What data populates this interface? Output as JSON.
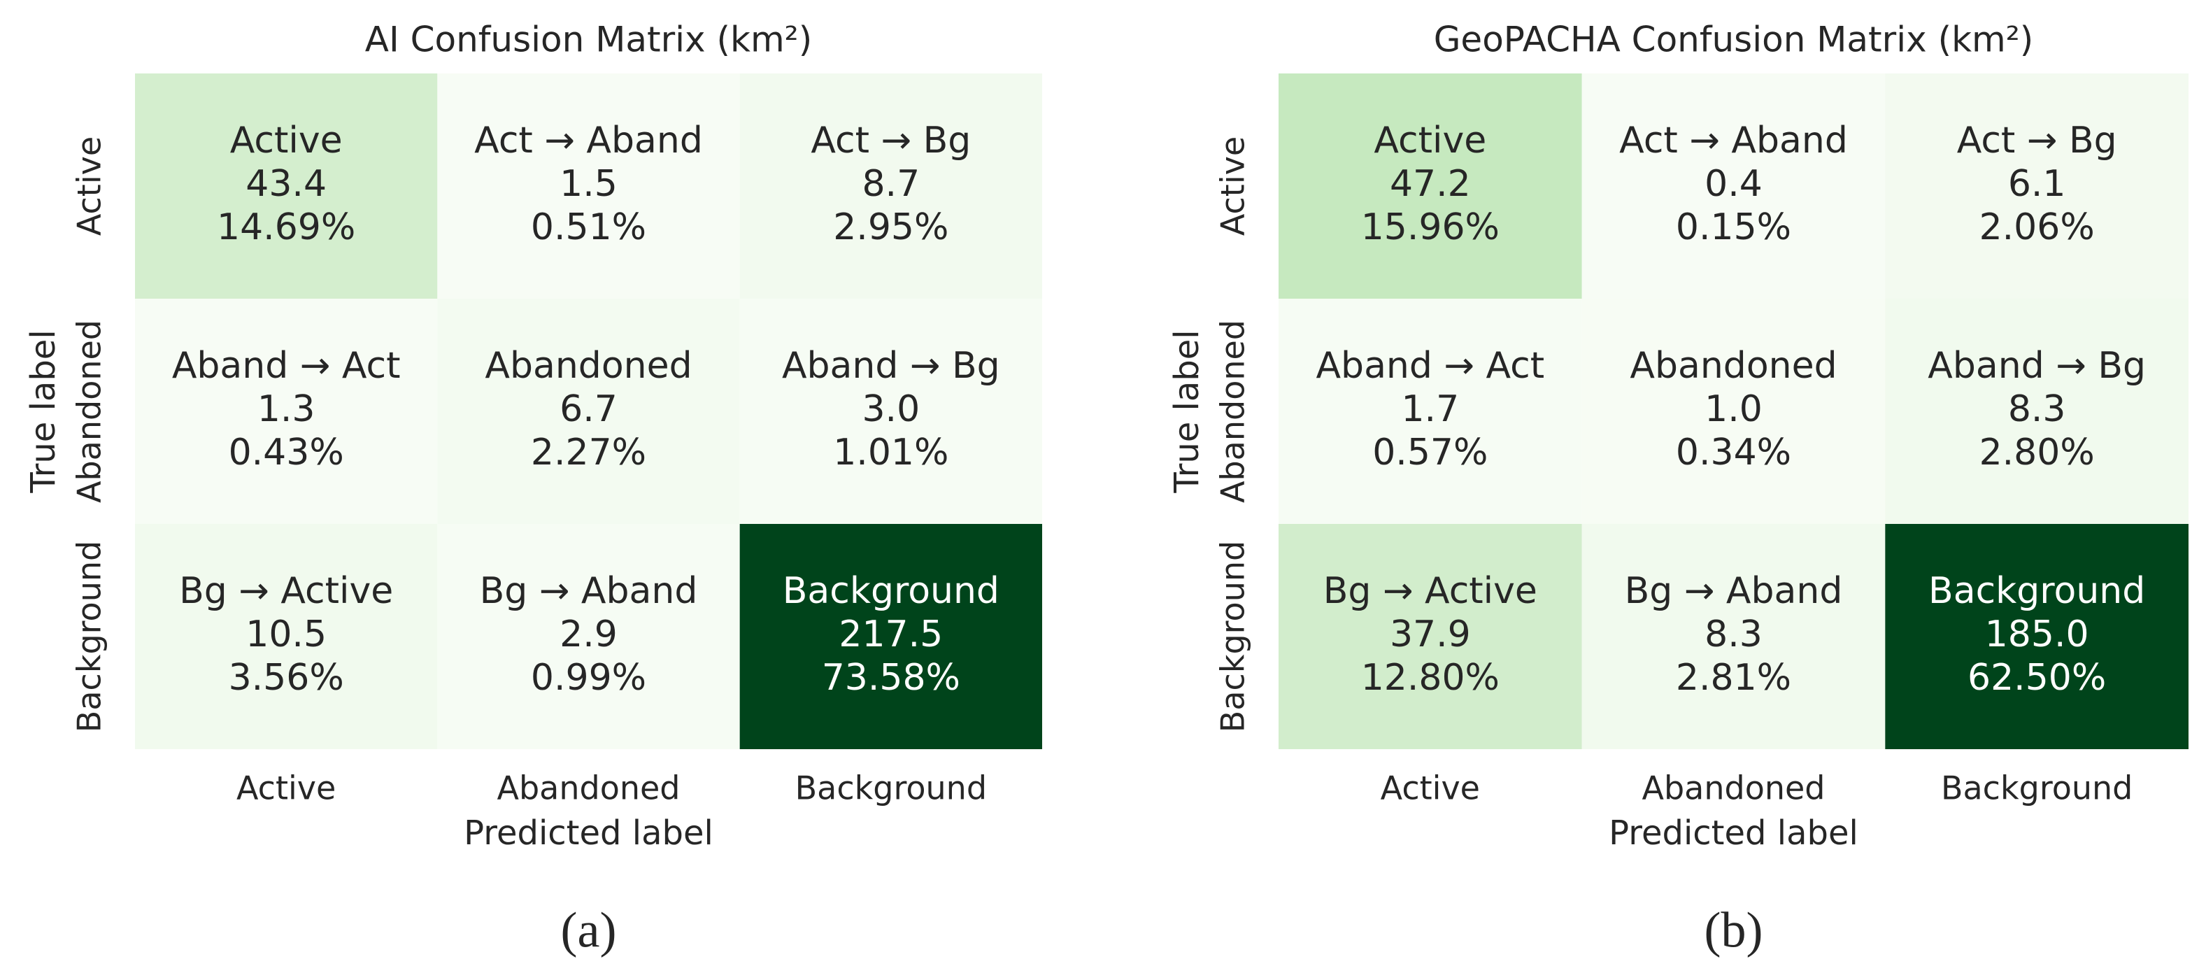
{
  "chart_data": [
    {
      "type": "heatmap",
      "title": "AI Confusion Matrix (km²)",
      "xlabel": "Predicted label",
      "ylabel": "True label",
      "x_categories": [
        "Active",
        "Abandoned",
        "Background"
      ],
      "y_categories": [
        "Active",
        "Abandoned",
        "Background"
      ],
      "cell_labels": [
        [
          "Active",
          "Act → Aband",
          "Act → Bg"
        ],
        [
          "Aband → Act",
          "Abandoned",
          "Aband → Bg"
        ],
        [
          "Bg → Active",
          "Bg → Aband",
          "Background"
        ]
      ],
      "values": [
        [
          43.4,
          1.5,
          8.7
        ],
        [
          1.3,
          6.7,
          3.0
        ],
        [
          10.5,
          2.9,
          217.5
        ]
      ],
      "value_labels": [
        [
          "43.4",
          "1.5",
          "8.7"
        ],
        [
          "1.3",
          "6.7",
          "3.0"
        ],
        [
          "10.5",
          "2.9",
          "217.5"
        ]
      ],
      "percents": [
        [
          14.69,
          0.51,
          2.95
        ],
        [
          0.43,
          2.27,
          1.01
        ],
        [
          3.56,
          0.99,
          73.58
        ]
      ],
      "percent_labels": [
        [
          "14.69%",
          "0.51%",
          "2.95%"
        ],
        [
          "0.43%",
          "2.27%",
          "1.01%"
        ],
        [
          "3.56%",
          "0.99%",
          "73.58%"
        ]
      ],
      "colormap": "Greens",
      "caption": "(a)"
    },
    {
      "type": "heatmap",
      "title": "GeoPACHA Confusion Matrix (km²)",
      "xlabel": "Predicted label",
      "ylabel": "True label",
      "x_categories": [
        "Active",
        "Abandoned",
        "Background"
      ],
      "y_categories": [
        "Active",
        "Abandoned",
        "Background"
      ],
      "cell_labels": [
        [
          "Active",
          "Act → Aband",
          "Act → Bg"
        ],
        [
          "Aband → Act",
          "Abandoned",
          "Aband → Bg"
        ],
        [
          "Bg → Active",
          "Bg → Aband",
          "Background"
        ]
      ],
      "values": [
        [
          47.2,
          0.4,
          6.1
        ],
        [
          1.7,
          1.0,
          8.3
        ],
        [
          37.9,
          8.3,
          185.0
        ]
      ],
      "value_labels": [
        [
          "47.2",
          "0.4",
          "6.1"
        ],
        [
          "1.7",
          "1.0",
          "8.3"
        ],
        [
          "37.9",
          "8.3",
          "185.0"
        ]
      ],
      "percents": [
        [
          15.96,
          0.15,
          2.06
        ],
        [
          0.57,
          0.34,
          2.8
        ],
        [
          12.8,
          2.81,
          62.5
        ]
      ],
      "percent_labels": [
        [
          "15.96%",
          "0.15%",
          "2.06%"
        ],
        [
          "0.57%",
          "0.34%",
          "2.80%"
        ],
        [
          "12.80%",
          "2.81%",
          "62.50%"
        ]
      ],
      "colormap": "Greens",
      "caption": "(b)"
    }
  ]
}
